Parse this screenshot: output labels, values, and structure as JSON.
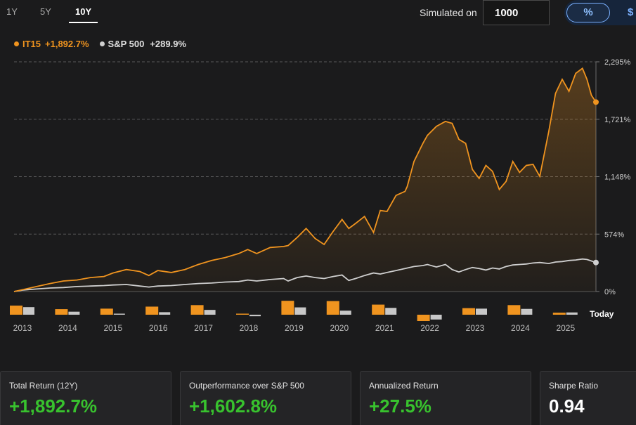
{
  "tabs": [
    {
      "label": "1Y"
    },
    {
      "label": "5Y"
    },
    {
      "label": "10Y",
      "active": true
    }
  ],
  "simulation": {
    "label": "Simulated on",
    "value": "1000"
  },
  "unit_toggle": {
    "percent": "%",
    "dollar": "$",
    "selected": "%"
  },
  "legend": {
    "it15": {
      "name": "IT15",
      "value": "+1,892.7%",
      "color": "#f0941f"
    },
    "sp500": {
      "name": "S&P 500",
      "value": "+289.9%",
      "color": "#cfcfcf"
    }
  },
  "cards": [
    {
      "label": "Total Return (12Y)",
      "value": "+1,892.7%",
      "tone": "green"
    },
    {
      "label": "Outperformance over S&P 500",
      "value": "+1,602.8%",
      "tone": "green"
    },
    {
      "label": "Annualized Return",
      "value": "+27.5%",
      "tone": "green"
    },
    {
      "label": "Sharpe Ratio",
      "value": "0.94",
      "tone": "white"
    }
  ],
  "chart_data": {
    "type": "line",
    "y_ticks": [
      "2,295%",
      "1,721%",
      "1,148%",
      "574%",
      "0%"
    ],
    "ylim": [
      0,
      2295
    ],
    "x_labels": [
      "2013",
      "2014",
      "2015",
      "2016",
      "2017",
      "2018",
      "2019",
      "2020",
      "2021",
      "2022",
      "2023",
      "2024",
      "2025"
    ],
    "x_extra_label": "Today",
    "grid": "horizontal dashed",
    "series": [
      {
        "name": "IT15",
        "color": "#f0941f",
        "points": [
          [
            2012.8,
            0
          ],
          [
            2013.0,
            20
          ],
          [
            2013.3,
            50
          ],
          [
            2013.6,
            80
          ],
          [
            2013.9,
            105
          ],
          [
            2014.2,
            115
          ],
          [
            2014.5,
            140
          ],
          [
            2014.8,
            150
          ],
          [
            2015.0,
            185
          ],
          [
            2015.3,
            220
          ],
          [
            2015.6,
            200
          ],
          [
            2015.8,
            160
          ],
          [
            2016.0,
            210
          ],
          [
            2016.3,
            190
          ],
          [
            2016.6,
            220
          ],
          [
            2016.9,
            270
          ],
          [
            2017.2,
            310
          ],
          [
            2017.5,
            340
          ],
          [
            2017.8,
            380
          ],
          [
            2018.0,
            420
          ],
          [
            2018.2,
            380
          ],
          [
            2018.5,
            440
          ],
          [
            2018.8,
            450
          ],
          [
            2018.9,
            460
          ],
          [
            2019.1,
            540
          ],
          [
            2019.3,
            630
          ],
          [
            2019.5,
            530
          ],
          [
            2019.7,
            470
          ],
          [
            2019.9,
            600
          ],
          [
            2020.1,
            720
          ],
          [
            2020.25,
            630
          ],
          [
            2020.4,
            680
          ],
          [
            2020.6,
            750
          ],
          [
            2020.8,
            590
          ],
          [
            2020.95,
            810
          ],
          [
            2021.1,
            800
          ],
          [
            2021.3,
            960
          ],
          [
            2021.5,
            1000
          ],
          [
            2021.55,
            1050
          ],
          [
            2021.7,
            1300
          ],
          [
            2021.9,
            1480
          ],
          [
            2022.0,
            1560
          ],
          [
            2022.2,
            1650
          ],
          [
            2022.4,
            1700
          ],
          [
            2022.55,
            1680
          ],
          [
            2022.7,
            1520
          ],
          [
            2022.85,
            1480
          ],
          [
            2023.0,
            1220
          ],
          [
            2023.15,
            1130
          ],
          [
            2023.3,
            1260
          ],
          [
            2023.45,
            1200
          ],
          [
            2023.6,
            1020
          ],
          [
            2023.75,
            1100
          ],
          [
            2023.9,
            1300
          ],
          [
            2024.05,
            1190
          ],
          [
            2024.2,
            1260
          ],
          [
            2024.35,
            1270
          ],
          [
            2024.5,
            1150
          ],
          [
            2024.7,
            1600
          ],
          [
            2024.85,
            1980
          ],
          [
            2025.0,
            2120
          ],
          [
            2025.15,
            2000
          ],
          [
            2025.3,
            2180
          ],
          [
            2025.45,
            2230
          ],
          [
            2025.55,
            2120
          ],
          [
            2025.65,
            1960
          ],
          [
            2025.75,
            1892.7
          ]
        ]
      },
      {
        "name": "S&P 500",
        "color": "#cfcfcf",
        "points": [
          [
            2012.8,
            0
          ],
          [
            2013.0,
            15
          ],
          [
            2013.3,
            25
          ],
          [
            2013.6,
            35
          ],
          [
            2013.9,
            40
          ],
          [
            2014.2,
            50
          ],
          [
            2014.5,
            55
          ],
          [
            2014.8,
            60
          ],
          [
            2015.0,
            65
          ],
          [
            2015.3,
            70
          ],
          [
            2015.6,
            55
          ],
          [
            2015.8,
            45
          ],
          [
            2016.0,
            55
          ],
          [
            2016.3,
            60
          ],
          [
            2016.6,
            70
          ],
          [
            2016.9,
            80
          ],
          [
            2017.2,
            85
          ],
          [
            2017.5,
            95
          ],
          [
            2017.8,
            100
          ],
          [
            2018.0,
            115
          ],
          [
            2018.2,
            105
          ],
          [
            2018.5,
            120
          ],
          [
            2018.8,
            130
          ],
          [
            2018.9,
            105
          ],
          [
            2019.1,
            140
          ],
          [
            2019.3,
            155
          ],
          [
            2019.5,
            140
          ],
          [
            2019.7,
            130
          ],
          [
            2019.9,
            150
          ],
          [
            2020.1,
            165
          ],
          [
            2020.25,
            110
          ],
          [
            2020.4,
            130
          ],
          [
            2020.6,
            160
          ],
          [
            2020.8,
            185
          ],
          [
            2020.95,
            175
          ],
          [
            2021.1,
            190
          ],
          [
            2021.3,
            210
          ],
          [
            2021.5,
            230
          ],
          [
            2021.7,
            250
          ],
          [
            2021.9,
            260
          ],
          [
            2022.0,
            270
          ],
          [
            2022.2,
            245
          ],
          [
            2022.4,
            270
          ],
          [
            2022.55,
            220
          ],
          [
            2022.7,
            195
          ],
          [
            2022.85,
            220
          ],
          [
            2023.0,
            240
          ],
          [
            2023.15,
            230
          ],
          [
            2023.3,
            215
          ],
          [
            2023.45,
            235
          ],
          [
            2023.6,
            225
          ],
          [
            2023.75,
            250
          ],
          [
            2023.9,
            265
          ],
          [
            2024.05,
            270
          ],
          [
            2024.2,
            275
          ],
          [
            2024.35,
            285
          ],
          [
            2024.5,
            290
          ],
          [
            2024.7,
            280
          ],
          [
            2024.85,
            295
          ],
          [
            2025.0,
            300
          ],
          [
            2025.15,
            310
          ],
          [
            2025.3,
            315
          ],
          [
            2025.45,
            325
          ],
          [
            2025.55,
            320
          ],
          [
            2025.65,
            305
          ],
          [
            2025.75,
            289.9
          ]
        ]
      }
    ],
    "annual_bars": [
      {
        "year": "2013",
        "it15": 36,
        "sp500": 30
      },
      {
        "year": "2014",
        "it15": 22,
        "sp500": 12
      },
      {
        "year": "2015",
        "it15": 24,
        "sp500": 1
      },
      {
        "year": "2016",
        "it15": 32,
        "sp500": 10
      },
      {
        "year": "2017",
        "it15": 38,
        "sp500": 19
      },
      {
        "year": "2018",
        "it15": 4,
        "sp500": -6
      },
      {
        "year": "2019",
        "it15": 55,
        "sp500": 29
      },
      {
        "year": "2020",
        "it15": 54,
        "sp500": 16
      },
      {
        "year": "2021",
        "it15": 40,
        "sp500": 27
      },
      {
        "year": "2022",
        "it15": -25,
        "sp500": -19
      },
      {
        "year": "2023",
        "it15": 26,
        "sp500": 24
      },
      {
        "year": "2024",
        "it15": 38,
        "sp500": 23
      },
      {
        "year": "2025",
        "it15": 8,
        "sp500": 9
      }
    ]
  }
}
